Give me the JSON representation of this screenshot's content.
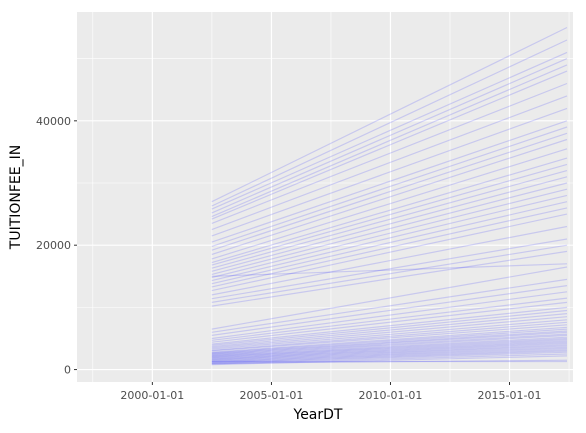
{
  "chart_data": {
    "type": "line",
    "title": "",
    "xlabel": "YearDT",
    "ylabel": "TUITIONFEE_IN",
    "xlim": [
      "1996-11-01",
      "2017-09-01"
    ],
    "ylim": [
      -2000,
      57500
    ],
    "x_ticks": [
      "2000-01-01",
      "2005-01-01",
      "2010-01-01",
      "2015-01-01"
    ],
    "y_ticks": [
      0,
      20000,
      40000
    ],
    "grid": true,
    "legend": "none",
    "line_color": "#0000ff",
    "line_opacity": 0.15,
    "x": [
      "2002-07-01",
      "2017-06-01"
    ],
    "series": [
      {
        "values": [
          27000,
          55000
        ]
      },
      {
        "values": [
          26300,
          53000
        ]
      },
      {
        "values": [
          25800,
          51000
        ]
      },
      {
        "values": [
          25200,
          50000
        ]
      },
      {
        "values": [
          24600,
          49000
        ]
      },
      {
        "values": [
          24200,
          48000
        ]
      },
      {
        "values": [
          23500,
          46000
        ]
      },
      {
        "values": [
          22500,
          44000
        ]
      },
      {
        "values": [
          21500,
          42000
        ]
      },
      {
        "values": [
          20500,
          40000
        ]
      },
      {
        "values": [
          19800,
          39000
        ]
      },
      {
        "values": [
          19200,
          38000
        ]
      },
      {
        "values": [
          18500,
          37000
        ]
      },
      {
        "values": [
          17800,
          35500
        ]
      },
      {
        "values": [
          17200,
          34000
        ]
      },
      {
        "values": [
          16800,
          33000
        ]
      },
      {
        "values": [
          16300,
          32000
        ]
      },
      {
        "values": [
          15800,
          31000
        ]
      },
      {
        "values": [
          15300,
          30000
        ]
      },
      {
        "values": [
          14800,
          29000
        ]
      },
      {
        "values": [
          14300,
          28000
        ]
      },
      {
        "values": [
          13800,
          27000
        ]
      },
      {
        "values": [
          13300,
          26000
        ]
      },
      {
        "values": [
          12700,
          25000
        ]
      },
      {
        "values": [
          12000,
          23000
        ]
      },
      {
        "values": [
          11400,
          21000
        ]
      },
      {
        "values": [
          10800,
          20000
        ]
      },
      {
        "values": [
          10200,
          19000
        ]
      },
      {
        "values": [
          15000,
          17000
        ]
      },
      {
        "values": [
          6500,
          16500
        ]
      },
      {
        "values": [
          6000,
          14500
        ]
      },
      {
        "values": [
          5500,
          13500
        ]
      },
      {
        "values": [
          5000,
          12500
        ]
      },
      {
        "values": [
          4700,
          11500
        ]
      },
      {
        "values": [
          4400,
          10800
        ]
      },
      {
        "values": [
          4100,
          10000
        ]
      },
      {
        "values": [
          3900,
          9500
        ]
      },
      {
        "values": [
          3700,
          9000
        ]
      },
      {
        "values": [
          3500,
          8500
        ]
      },
      {
        "values": [
          3300,
          8000
        ]
      },
      {
        "values": [
          3100,
          7600
        ]
      },
      {
        "values": [
          3000,
          7200
        ]
      },
      {
        "values": [
          2800,
          6800
        ]
      },
      {
        "values": [
          2700,
          6500
        ]
      },
      {
        "values": [
          2600,
          6200
        ]
      },
      {
        "values": [
          2500,
          6000
        ]
      },
      {
        "values": [
          2400,
          5700
        ]
      },
      {
        "values": [
          2300,
          5500
        ]
      },
      {
        "values": [
          2200,
          5200
        ]
      },
      {
        "values": [
          2100,
          5000
        ]
      },
      {
        "values": [
          2000,
          4800
        ]
      },
      {
        "values": [
          1900,
          4600
        ]
      },
      {
        "values": [
          1800,
          4400
        ]
      },
      {
        "values": [
          1700,
          4200
        ]
      },
      {
        "values": [
          1600,
          4000
        ]
      },
      {
        "values": [
          1500,
          3800
        ]
      },
      {
        "values": [
          1400,
          3600
        ]
      },
      {
        "values": [
          1300,
          3400
        ]
      },
      {
        "values": [
          1200,
          3200
        ]
      },
      {
        "values": [
          1100,
          3000
        ]
      },
      {
        "values": [
          1000,
          2800
        ]
      },
      {
        "values": [
          900,
          2500
        ]
      },
      {
        "values": [
          800,
          2200
        ]
      },
      {
        "values": [
          1000,
          1500
        ]
      },
      {
        "values": [
          1300,
          1300
        ]
      }
    ]
  }
}
